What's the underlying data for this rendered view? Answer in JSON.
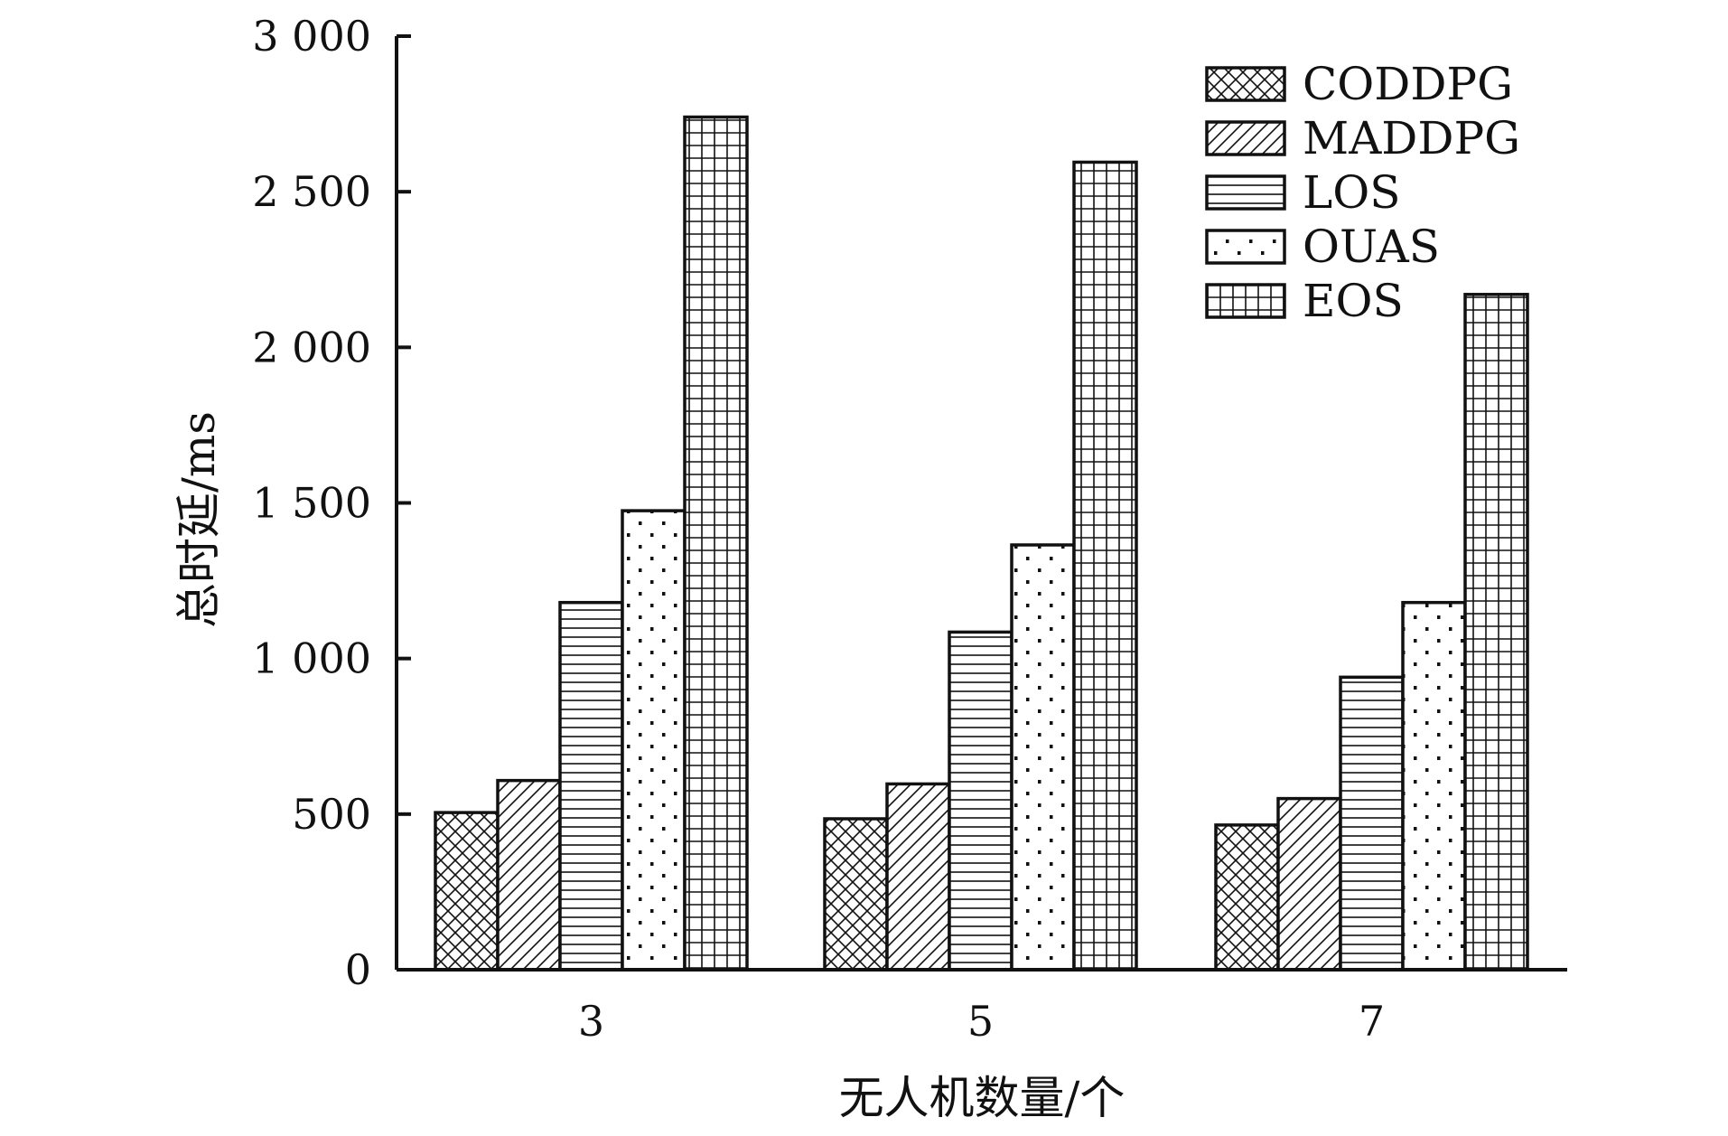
{
  "chart_data": {
    "type": "bar",
    "title": "",
    "xlabel": "无人机数量/个",
    "ylabel": "总时延/ms",
    "categories": [
      "3",
      "5",
      "7"
    ],
    "ylim": [
      0,
      3000
    ],
    "yticks": [
      0,
      500,
      1000,
      1500,
      2000,
      2500,
      3000
    ],
    "ytick_labels": [
      "0",
      "500",
      "1 000",
      "1 500",
      "2 000",
      "2 500",
      "3 000"
    ],
    "legend_position": "top-right",
    "grid": false,
    "series": [
      {
        "name": "CODDPG",
        "pattern": "crosshatch",
        "values": [
          505,
          485,
          465
        ]
      },
      {
        "name": "MADDPG",
        "pattern": "diagonal",
        "values": [
          608,
          597,
          550
        ]
      },
      {
        "name": "LOS",
        "pattern": "horizontal",
        "values": [
          1180,
          1085,
          940
        ]
      },
      {
        "name": "OUAS",
        "pattern": "dots",
        "values": [
          1475,
          1365,
          1180
        ]
      },
      {
        "name": "EOS",
        "pattern": "grid",
        "values": [
          2740,
          2595,
          2170
        ]
      }
    ]
  }
}
